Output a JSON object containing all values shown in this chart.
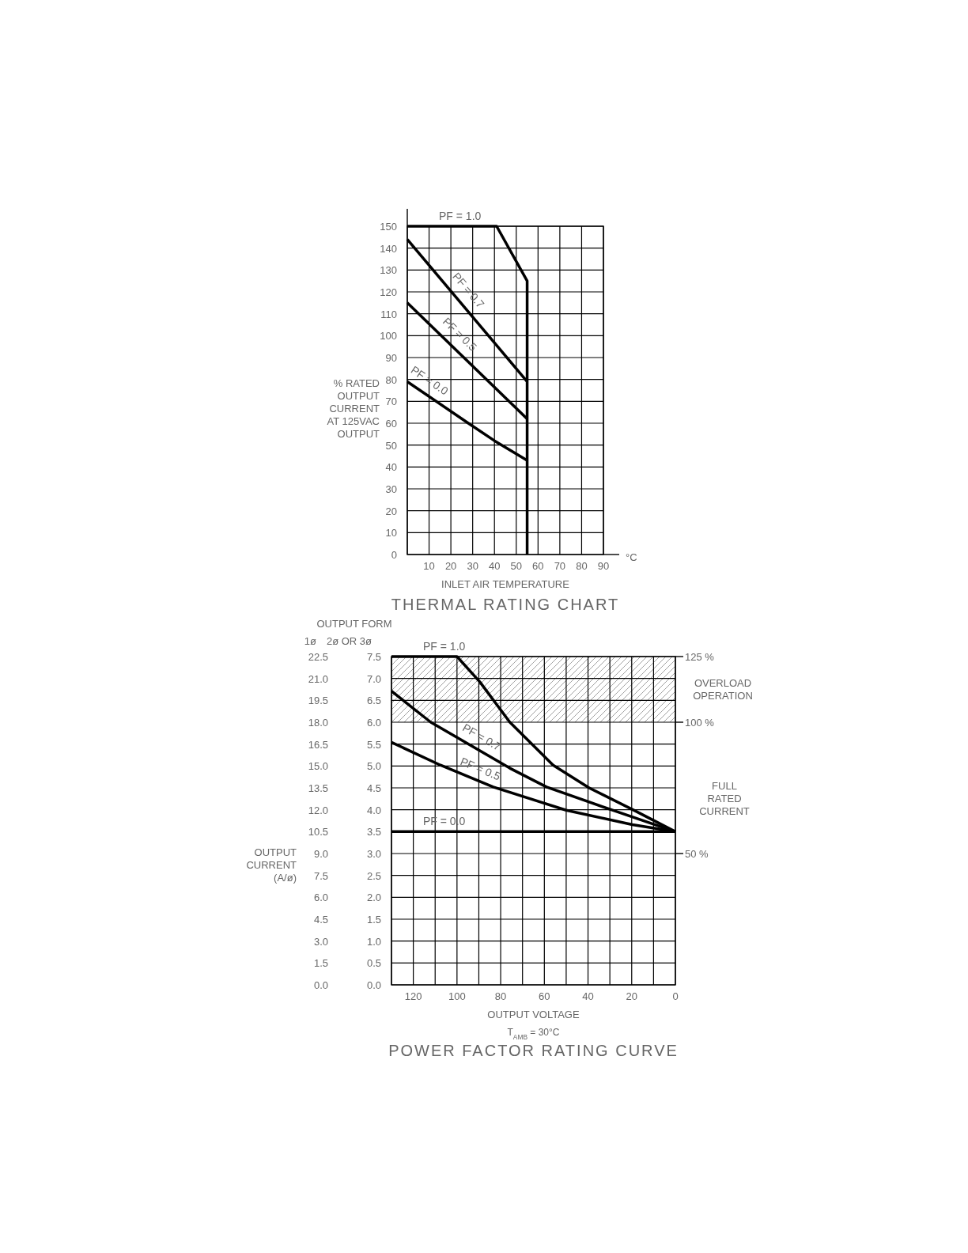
{
  "chart_data": [
    {
      "type": "line",
      "title": "THERMAL RATING CHART",
      "xlabel": "INLET AIR TEMPERATURE",
      "ylabel": "% RATED\nOUTPUT\nCURRENT\nAT 125VAC\nOUTPUT",
      "annotations": [
        "°C"
      ],
      "xlim": [
        0,
        90
      ],
      "xticks": [
        10,
        20,
        30,
        40,
        50,
        60,
        70,
        80,
        90
      ],
      "ylim": [
        0,
        150
      ],
      "yticks": [
        0,
        10,
        20,
        30,
        40,
        50,
        60,
        70,
        80,
        90,
        100,
        110,
        120,
        130,
        140,
        150
      ],
      "grid": true,
      "marker": "none",
      "line_style": "solid",
      "series": [
        {
          "name": "PF = 1.0",
          "color": "#000000",
          "x": [
            0,
            41,
            55,
            55
          ],
          "values": [
            150,
            150,
            125,
            0
          ]
        },
        {
          "name": "PF = 0.7",
          "color": "#000000",
          "x": [
            0,
            55
          ],
          "values": [
            144,
            79
          ]
        },
        {
          "name": "PF = 0.5",
          "color": "#000000",
          "x": [
            0,
            55
          ],
          "values": [
            115,
            62
          ]
        },
        {
          "name": "PF = 0.0",
          "color": "#000000",
          "x": [
            0,
            28,
            40,
            55
          ],
          "values": [
            79,
            60,
            52,
            43
          ]
        }
      ]
    },
    {
      "type": "line",
      "title": "POWER FACTOR RATING CURVE",
      "xlabel": "OUTPUT VOLTAGE",
      "ylabel": "OUTPUT\nCURRENT\n(A/ø)",
      "y2label": "2ø OR 3ø",
      "annotations": [
        "OUTPUT FORM",
        "1ø",
        "FULL\nRATED\nCURRENT",
        "T$_{AMB}$ = 30°C"
      ],
      "xlim": [
        130,
        0
      ],
      "xticks": [
        120,
        100,
        80,
        60,
        40,
        20,
        0
      ],
      "y2lim": [
        0,
        7.5
      ],
      "y2ticks": [
        {
          "value": 0,
          "label": "0.0"
        },
        0.5,
        {
          "value": 1,
          "label": "1.0"
        },
        1.5,
        {
          "value": 2,
          "label": "2.0"
        },
        2.5,
        {
          "value": 3,
          "label": "3.0"
        },
        3.5,
        {
          "value": 4,
          "label": "4.0"
        },
        4.5,
        {
          "value": 5,
          "label": "5.0"
        },
        5.5,
        {
          "value": 6,
          "label": "6.0"
        },
        6.5,
        {
          "value": 7,
          "label": "7.0"
        },
        7.5
      ],
      "ylim": [
        0,
        22.5
      ],
      "yticks": [
        {
          "value": 0,
          "label": "0.0"
        },
        1.5,
        {
          "value": 3,
          "label": "3.0"
        },
        4.5,
        {
          "value": 6,
          "label": "6.0"
        },
        7.5,
        {
          "value": 9,
          "label": "9.0"
        },
        10.5,
        {
          "value": 12,
          "label": "12.0"
        },
        13.5,
        {
          "value": 15,
          "label": "15.0"
        },
        16.5,
        {
          "value": 18,
          "label": "18.0"
        },
        19.5,
        {
          "value": 21,
          "label": "21.0"
        },
        22.5
      ],
      "y3lim": [
        0,
        125
      ],
      "y3ticks": [
        {
          "value": 50,
          "label": "50 %"
        },
        {
          "value": 100,
          "label": "100 %"
        },
        {
          "value": 125,
          "label": "125 %"
        }
      ],
      "grid": true,
      "marker": "none",
      "line_style": "solid",
      "bands": [
        {
          "axis": "y2",
          "from": 6,
          "to": 7.5,
          "label": "OVERLOAD\nOPERATION"
        }
      ],
      "series": [
        {
          "name": "PF = 1.0",
          "color": "#000000",
          "axis": "y2",
          "x": [
            130,
            100,
            89.5,
            75.8,
            56,
            39.5,
            18.2,
            0
          ],
          "values": [
            7.5,
            7.5,
            6.92,
            6.0,
            5.02,
            4.5,
            3.97,
            3.5
          ]
        },
        {
          "name": "PF = 0.7",
          "color": "#000000",
          "axis": "y2",
          "x": [
            130,
            112,
            75.8,
            59,
            28.8,
            0
          ],
          "values": [
            6.71,
            6.0,
            4.95,
            4.52,
            3.99,
            3.5
          ]
        },
        {
          "name": "PF = 0.5",
          "color": "#000000",
          "axis": "y2",
          "x": [
            130,
            107.6,
            83.4,
            50,
            19.7,
            0
          ],
          "values": [
            5.54,
            5.02,
            4.52,
            3.99,
            3.66,
            3.5
          ]
        },
        {
          "name": "PF = 0.0",
          "color": "#000000",
          "axis": "y2",
          "x": [
            130,
            0
          ],
          "values": [
            3.5,
            3.5
          ]
        }
      ]
    }
  ]
}
